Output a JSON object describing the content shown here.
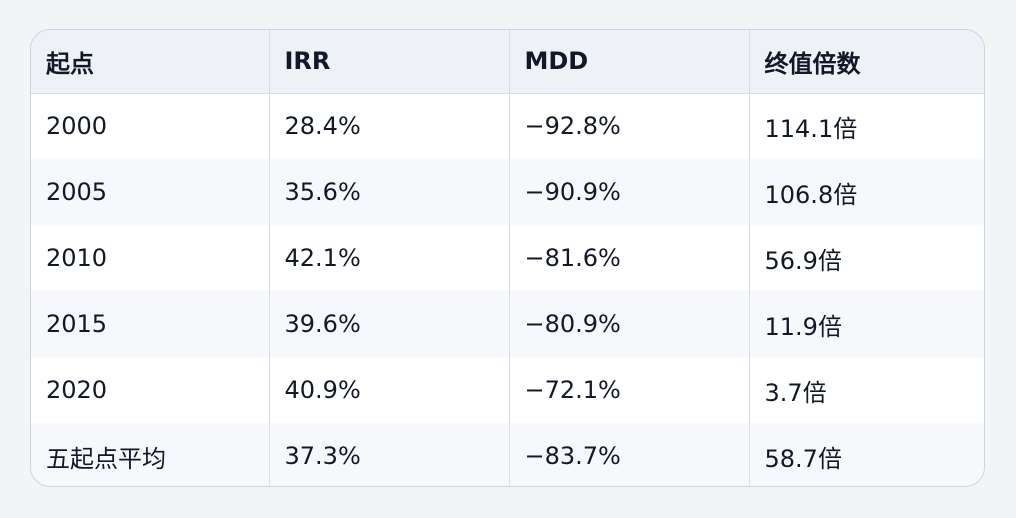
{
  "table": {
    "headers": [
      "起点",
      "IRR",
      "MDD",
      "终值倍数"
    ],
    "rows": [
      [
        "2000",
        "28.4%",
        "−92.8%",
        "114.1倍"
      ],
      [
        "2005",
        "35.6%",
        "−90.9%",
        "106.8倍"
      ],
      [
        "2010",
        "42.1%",
        "−81.6%",
        "56.9倍"
      ],
      [
        "2015",
        "39.6%",
        "−80.9%",
        "11.9倍"
      ],
      [
        "2020",
        "40.9%",
        "−72.1%",
        "3.7倍"
      ],
      [
        "五起点平均",
        "37.3%",
        "−83.7%",
        "58.7倍"
      ]
    ]
  }
}
